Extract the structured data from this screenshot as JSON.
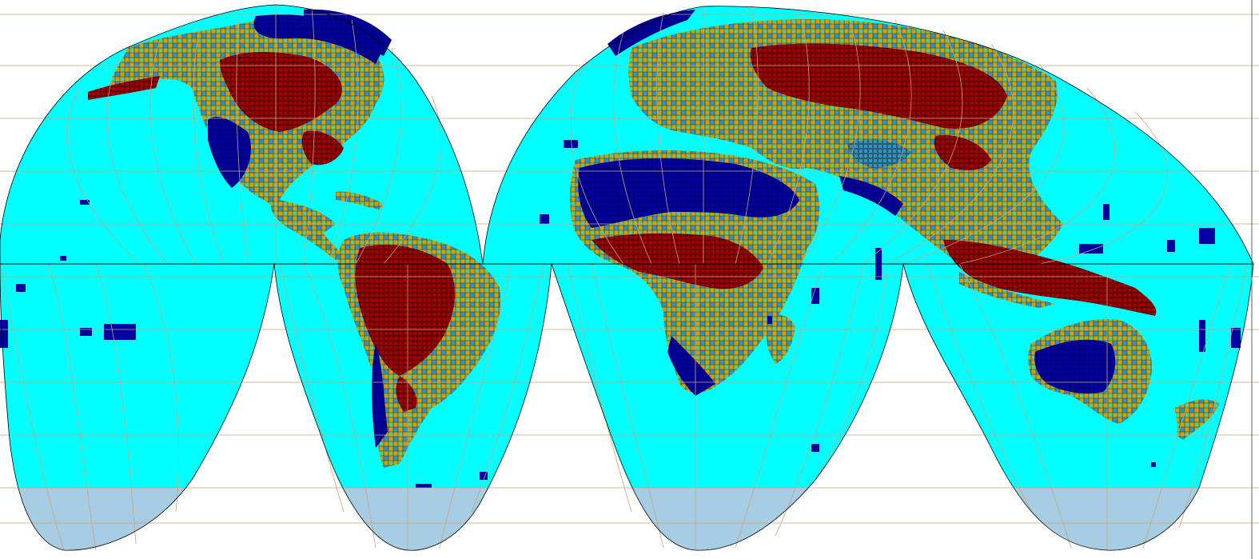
{
  "map": {
    "projection": "interrupted-goode-homolosine",
    "lobes": 4,
    "colors": {
      "ocean": "#00ffff",
      "antarctic_band": "#a6cde3",
      "outline": "#000000",
      "graticule": "#c8a57a",
      "cell_border": "#1e1e1e",
      "class_very_high": "#a40000",
      "class_high": "#d2a000",
      "class_medium": "#64c878",
      "class_low": "#2896c8",
      "class_very_low": "#0000a0",
      "background": "#ffffff"
    }
  }
}
